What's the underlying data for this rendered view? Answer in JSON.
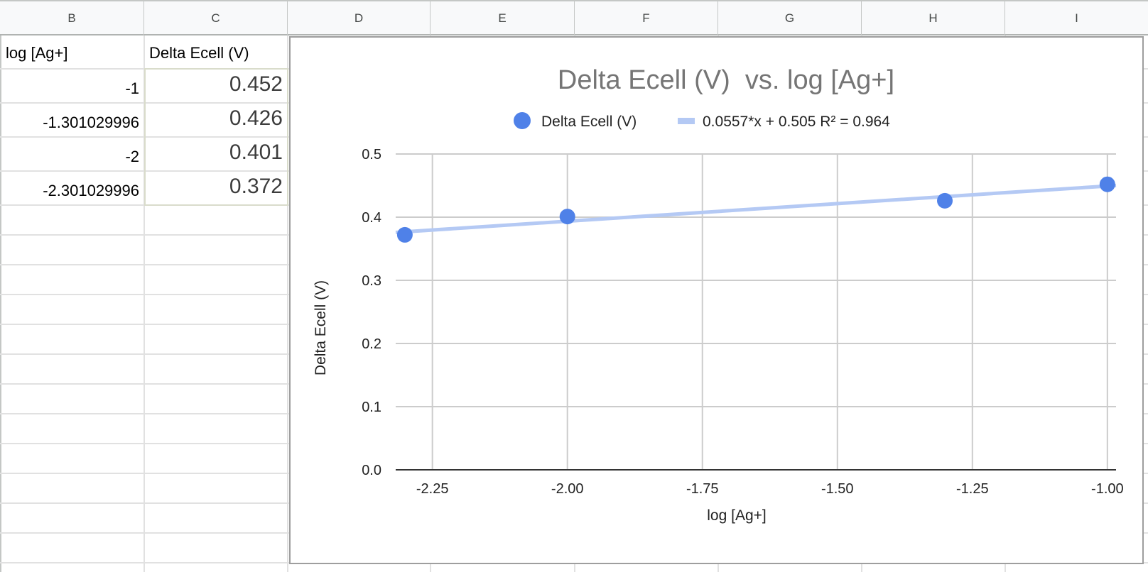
{
  "sheet": {
    "columns": [
      "B",
      "C",
      "D",
      "E",
      "F",
      "G",
      "H",
      "I"
    ],
    "header_row": {
      "b": "log [Ag+]",
      "c": "Delta Ecell (V)"
    },
    "rows": [
      {
        "b": "-1",
        "c": "0.452"
      },
      {
        "b": "-1.301029996",
        "c": "0.426"
      },
      {
        "b": "-2",
        "c": "0.401"
      },
      {
        "b": "-2.301029996",
        "c": "0.372"
      }
    ]
  },
  "chart_data": {
    "type": "scatter",
    "title": "Delta Ecell (V)  vs. log [Ag+]",
    "xlabel": "log [Ag+]",
    "ylabel": "Delta Ecell (V)",
    "xlim": [
      -2.318,
      -0.984
    ],
    "ylim": [
      0.0,
      0.5
    ],
    "x_ticks": [
      -2.25,
      -2.0,
      -1.75,
      -1.5,
      -1.25,
      -1.0
    ],
    "x_tick_labels": [
      "-2.25",
      "-2.00",
      "-1.75",
      "-1.50",
      "-1.25",
      "-1.00"
    ],
    "y_ticks": [
      0.0,
      0.1,
      0.2,
      0.3,
      0.4,
      0.5
    ],
    "y_tick_labels": [
      "0.0",
      "0.1",
      "0.2",
      "0.3",
      "0.4",
      "0.5"
    ],
    "grid": true,
    "legend_position": "top",
    "series": [
      {
        "name": "Delta Ecell (V)",
        "color": "#4f81e8",
        "x": [
          -1,
          -1.301029996,
          -2,
          -2.301029996
        ],
        "y": [
          0.452,
          0.426,
          0.401,
          0.372
        ]
      }
    ],
    "trendline": {
      "label": "0.0557*x + 0.505 R² = 0.964",
      "slope": 0.0557,
      "intercept": 0.505,
      "r2": 0.964,
      "color": "#b4c9f4"
    }
  }
}
